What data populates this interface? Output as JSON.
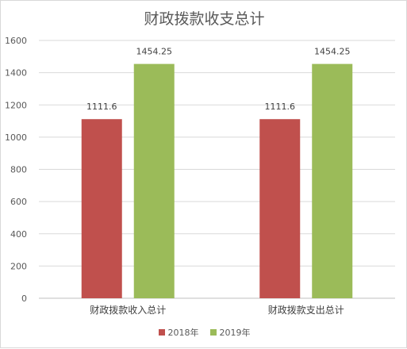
{
  "chart_data": {
    "type": "bar",
    "title": "财政拨款收支总计",
    "categories": [
      "财政拨款收入总计",
      "财政拨款支出总计"
    ],
    "series": [
      {
        "name": "2018年",
        "values": [
          1111.6,
          1111.6
        ],
        "labels": [
          "1111.6",
          "1111.6"
        ],
        "color": "#c0504d"
      },
      {
        "name": "2019年",
        "values": [
          1454.25,
          1454.25
        ],
        "labels": [
          "1454.25",
          "1454.25"
        ],
        "color": "#9bbb59"
      }
    ],
    "ylim": [
      0,
      1600
    ],
    "yticks": [
      0,
      200,
      400,
      600,
      800,
      1000,
      1200,
      1400,
      1600
    ],
    "grid": true,
    "legend_position": "bottom"
  }
}
